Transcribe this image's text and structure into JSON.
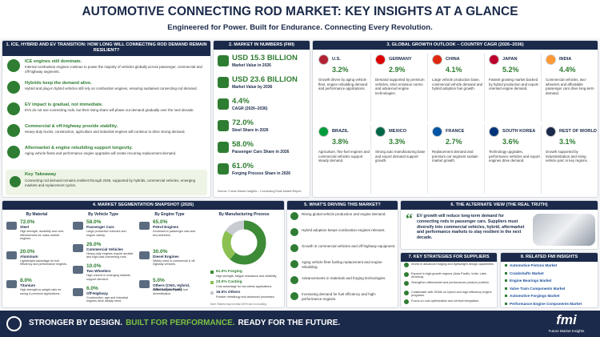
{
  "header": {
    "title": "AUTOMOTIVE CONNECTING ROD MARKET: KEY INSIGHTS AT A GLANCE",
    "subtitle": "Engineered for Power. Built for Endurance. Connecting Every Revolution."
  },
  "transition": {
    "heading": "1. ICE, HYBRID AND EV TRANSITION: HOW LONG WILL CONNECTING ROD DEMAND REMAIN RESILIENT?",
    "items": [
      {
        "title": "ICE engines still dominate.",
        "text": "Internal combustion engines continue to power the majority of vehicles globally across passenger, commercial and off-highway segments."
      },
      {
        "title": "Hybrids keep the demand alive.",
        "text": "Hybrid and plug-in hybrid vehicles still rely on combustion engines, ensuring sustained connecting rod demand."
      },
      {
        "title": "EV impact is gradual, not immediate.",
        "text": "EVs do not use connecting rods, but their rising share will phase out demand gradually over the next decade."
      },
      {
        "title": "Commercial & off-highway provide stability.",
        "text": "Heavy-duty trucks, construction, agriculture and industrial engines will continue to drive strong demand."
      },
      {
        "title": "Aftermarket & engine rebuilding support longevity.",
        "text": "Aging vehicle fleets and performance engine upgrades will create recurring replacement demand."
      }
    ],
    "takeaway": {
      "title": "Key Takeaway",
      "text": "Connecting rod demand remains resilient through 2036, supported by hybrids, commercial vehicles, emerging markets and replacement cycles."
    }
  },
  "numbers": {
    "heading": "2. MARKET IN NUMBERS (FMI)",
    "items": [
      {
        "value": "USD 15.3 BILLION",
        "label": "Market Value in 2026"
      },
      {
        "value": "USD 23.6 BILLION",
        "label": "Market Value by 2036"
      },
      {
        "value": "4.4%",
        "label": "CAGR (2026–2036)"
      },
      {
        "value": "72.0%",
        "label": "Steel Share in 2026"
      },
      {
        "value": "58.0%",
        "label": "Passenger Cars Share in 2026"
      },
      {
        "value": "61.0%",
        "label": "Forging Process Share in 2026"
      }
    ],
    "source": "Source: Future Market Insights – Connecting Rods Market Report"
  },
  "outlook": {
    "heading": "3. GLOBAL GROWTH OUTLOOK – COUNTRY CAGR (2026–2036)",
    "countries": [
      {
        "name": "U.S.",
        "cagr": "3.2%",
        "text": "Growth driven by aging vehicle fleet, engine rebuilding demand and performance applications."
      },
      {
        "name": "GERMANY",
        "cagr": "2.9%",
        "text": "Demand supported by premium vehicles, strict emission norms and advanced engine technologies."
      },
      {
        "name": "CHINA",
        "cagr": "4.1%",
        "text": "Large vehicle production base, commercial vehicle demand and hybrid adoption fuel growth."
      },
      {
        "name": "JAPAN",
        "cagr": "5.2%",
        "text": "Fastest growing market backed by hybrid production and export-oriented engine demand."
      },
      {
        "name": "INDIA",
        "cagr": "4.4%",
        "text": "Commercial vehicles, two-wheelers and affordable passenger cars drive long-term demand."
      },
      {
        "name": "BRAZIL",
        "cagr": "3.8%",
        "text": "Agriculture, flex-fuel engines and commercial vehicles support steady demand."
      },
      {
        "name": "MEXICO",
        "cagr": "3.3%",
        "text": "Strong auto manufacturing base and export demand support growth."
      },
      {
        "name": "FRANCE",
        "cagr": "2.7%",
        "text": "Replacement demand and premium car segment sustain market growth."
      },
      {
        "name": "SOUTH KOREA",
        "cagr": "3.6%",
        "text": "Technology upgrades, performance vehicles and export engines drive demand."
      },
      {
        "name": "REST OF WORLD",
        "cagr": "3.1%",
        "text": "Growth supported by industrialization and rising vehicle parc in key regions."
      }
    ]
  },
  "segmentation": {
    "heading": "4. MARKET SEGMENTATION SNAPSHOT (2026)",
    "groups": [
      {
        "title": "By Material",
        "items": [
          {
            "share": "72.0%",
            "name": "Steel",
            "text": "High strength, durability and cost-effectiveness for mass-market engines."
          },
          {
            "share": "20.0%",
            "name": "Aluminum",
            "text": "Lightweight advantage for fuel efficiency and performance engines."
          },
          {
            "share": "8.0%",
            "name": "Titanium",
            "text": "High strength-to-weight ratio for racing & premium applications."
          }
        ]
      },
      {
        "title": "By Vehicle Type",
        "items": [
          {
            "share": "58.0%",
            "name": "Passenger Cars",
            "text": "Large production volumes and engine variety."
          },
          {
            "share": "26.0%",
            "name": "Commercial Vehicles",
            "text": "Heavy-duty engines require durable and high-load connecting rods."
          },
          {
            "share": "10.0%",
            "name": "Two Wheelers",
            "text": "High volume in emerging markets support demand."
          },
          {
            "share": "6.0%",
            "name": "Off-Highway",
            "text": "Construction, agri and industrial engines drive steady need."
          }
        ]
      },
      {
        "title": "By Engine Type",
        "items": [
          {
            "share": "65.0%",
            "name": "Petrol Engines",
            "text": "Dominant in passenger cars and two-wheelers."
          },
          {
            "share": "30.0%",
            "name": "Diesel Engines",
            "text": "Widely used in commercial & off-highway vehicles."
          },
          {
            "share": "5.0%",
            "name": "Others (CNG, Hybrid, Alternative Fuel)",
            "text": "Niche but growing with fuel diversification."
          }
        ]
      }
    ],
    "process": {
      "title": "By Manufacturing Process",
      "segments": [
        {
          "value": 61,
          "label": "61.0% Forging",
          "text": "High strength, fatigue resistance and reliability.",
          "color": "#3d8b37"
        },
        {
          "value": 23,
          "label": "23.0% Casting",
          "text": "Cost advantage for low-stress applications.",
          "color": "#8cc152"
        },
        {
          "value": 16,
          "label": "16.0% Others",
          "text": "Powder metallurgy and advanced processes.",
          "color": "#c8ccd2"
        }
      ],
      "note": "Note: Shares may not total 100% due to rounding."
    }
  },
  "drivers": {
    "heading": "5. WHAT'S DRIVING THIS MARKET?",
    "items": [
      "Rising global vehicle production and engine demand.",
      "Hybrid adoption keeps combustion engines relevant.",
      "Growth in commercial vehicles and off-highway equipment.",
      "Aging vehicle fleet fueling replacement and engine rebuilding.",
      "Advancements in materials and forging technologies.",
      "Increasing demand for fuel efficiency and high-performance engines."
    ]
  },
  "alternate": {
    "heading": "6. THE ALTERNATE VIEW (THE REAL TRUTH)",
    "quote": "EV growth will reduce long-term demand for connecting rods in passenger cars. Suppliers must diversify into commercial vehicles, hybrid, aftermarket and performance markets to stay resilient in the next decade."
  },
  "strategies": {
    "heading": "7. KEY STRATEGIES FOR SUPPLIERS",
    "items": [
      "Invest in advanced forging and lightweight design capabilities.",
      "Expand in high-growth regions (Asia Pacific, India, Latin America).",
      "Strengthen aftermarket and performance product portfolio.",
      "Collaborate with OEMs on hybrid and high-efficiency engine programs.",
      "Focus on cost optimization and vertical integration."
    ]
  },
  "related": {
    "heading": "8. RELATED FMI INSIGHTS",
    "items": [
      "Automotive Pistons Market",
      "Crankshafts Market",
      "Engine Bearings Market",
      "Valve Train Components Market",
      "Automotive Forgings Market",
      "Performance Engine Components Market"
    ]
  },
  "footer": {
    "parts": [
      "STRONGER BY DESIGN.",
      "BUILT FOR PERFORMANCE.",
      "READY FOR THE FUTURE."
    ],
    "logo": "fmi",
    "logo_sub": "Future Market Insights"
  }
}
